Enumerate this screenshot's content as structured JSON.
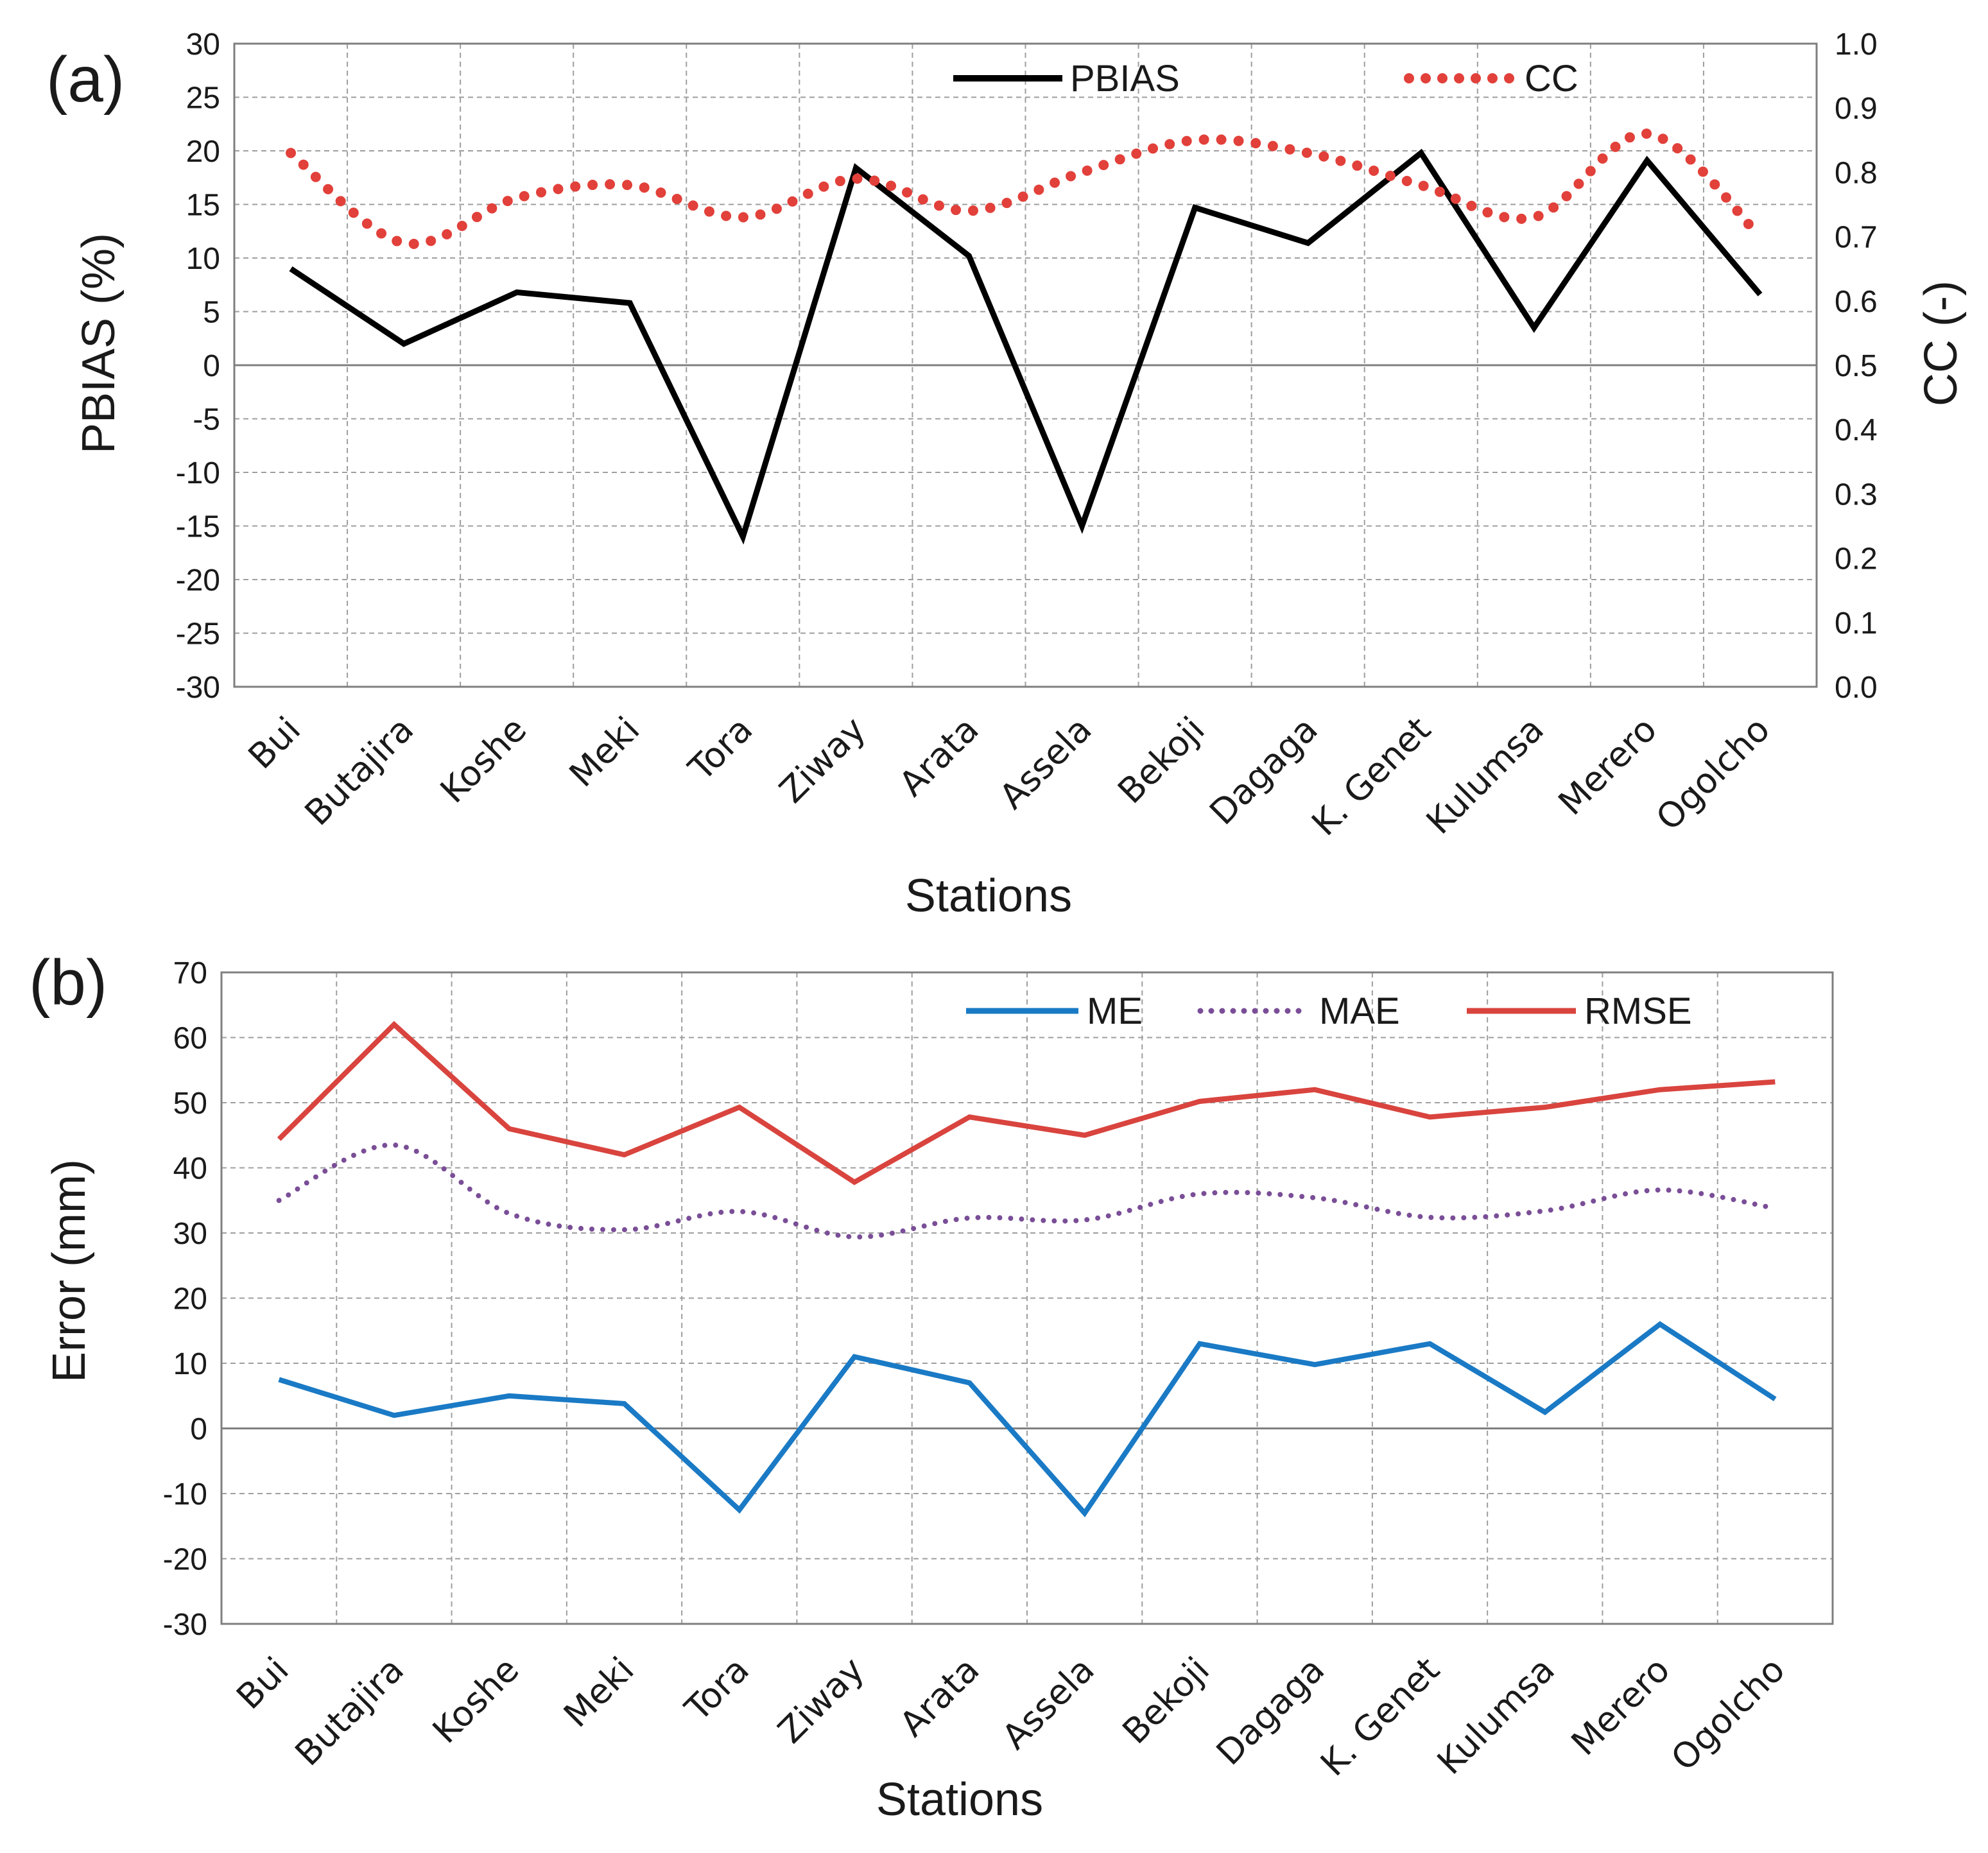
{
  "chart_data": [
    {
      "type": "line",
      "panel_label": "(a)",
      "xlabel": "Stations",
      "ylabel": "PBIAS (%)",
      "ylabel_right": "CC (-)",
      "categories": [
        "Bui",
        "Butajira",
        "Koshe",
        "Meki",
        "Tora",
        "Ziway",
        "Arata",
        "Assela",
        "Bekoji",
        "Dagaga",
        "K. Genet",
        "Kulumsa",
        "Merero",
        "Ogolcho"
      ],
      "ylim": [
        -30,
        30
      ],
      "yticks": [
        "30",
        "25",
        "20",
        "15",
        "10",
        "5",
        "0",
        "-5",
        "-10",
        "-15",
        "-20",
        "-25",
        "-30"
      ],
      "ylim_right": [
        0.0,
        1.0
      ],
      "yticks_right": [
        "1.0",
        "0.9",
        "0.8",
        "0.7",
        "0.6",
        "0.5",
        "0.4",
        "0.3",
        "0.2",
        "0.1",
        "0.0"
      ],
      "grid": true,
      "legend_position": "top",
      "series": [
        {
          "name": "PBIAS",
          "axis": "left",
          "style": "solid",
          "color": "#000000",
          "values": [
            9.0,
            2.0,
            6.8,
            5.8,
            -16.0,
            18.4,
            10.2,
            -15.0,
            14.7,
            11.4,
            19.8,
            3.5,
            19.1,
            6.6
          ]
        },
        {
          "name": "CC",
          "axis": "right",
          "style": "dotted",
          "color": "#e2403a",
          "values": [
            0.83,
            0.69,
            0.76,
            0.78,
            0.73,
            0.79,
            0.74,
            0.8,
            0.85,
            0.83,
            0.78,
            0.73,
            0.86,
            0.7
          ]
        }
      ]
    },
    {
      "type": "line",
      "panel_label": "(b)",
      "xlabel": "Stations",
      "ylabel": "Error (mm)",
      "categories": [
        "Bui",
        "Butajira",
        "Koshe",
        "Meki",
        "Tora",
        "Ziway",
        "Arata",
        "Assela",
        "Bekoji",
        "Dagaga",
        "K. Genet",
        "Kulumsa",
        "Merero",
        "Ogolcho"
      ],
      "ylim": [
        -30,
        70
      ],
      "yticks": [
        "70",
        "60",
        "50",
        "40",
        "30",
        "20",
        "10",
        "0",
        "-10",
        "-20",
        "-30"
      ],
      "grid": true,
      "legend_position": "top-right",
      "series": [
        {
          "name": "ME",
          "style": "solid",
          "color": "#1a7ac5",
          "values": [
            7.5,
            2.0,
            5.0,
            3.8,
            -12.5,
            11.0,
            7.0,
            -13.0,
            13.0,
            9.8,
            13.0,
            2.5,
            16.0,
            4.5
          ]
        },
        {
          "name": "MAE",
          "style": "dotted",
          "color": "#7a4e97",
          "values": [
            35.0,
            43.5,
            33.0,
            30.5,
            33.3,
            29.4,
            32.3,
            32.0,
            36.0,
            35.4,
            32.4,
            33.4,
            36.6,
            33.8
          ]
        },
        {
          "name": "RMSE",
          "style": "solid",
          "color": "#d9443e",
          "values": [
            44.4,
            62.0,
            46.0,
            42.0,
            49.3,
            37.8,
            47.8,
            45.0,
            50.2,
            52.0,
            47.8,
            49.3,
            52.0,
            53.2
          ]
        }
      ]
    }
  ]
}
